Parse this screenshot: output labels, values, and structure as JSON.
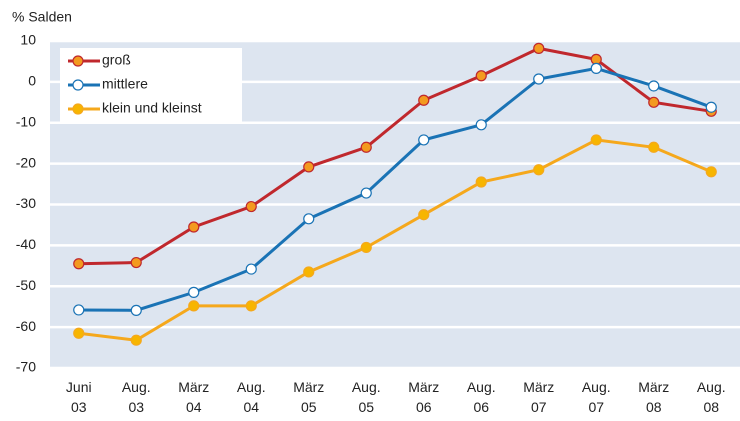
{
  "chart_data": {
    "type": "line",
    "y_label": "% Salden",
    "categories": [
      "Juni 03",
      "Aug. 03",
      "März 04",
      "Aug. 04",
      "März 05",
      "Aug. 05",
      "März 06",
      "Aug. 06",
      "März 07",
      "Aug. 07",
      "März 08",
      "Aug. 08"
    ],
    "series": [
      {
        "name": "groß",
        "color": "#c0282d",
        "marker_color": "#f39a1f",
        "values": [
          -44.5,
          -44.2,
          -35.5,
          -30.5,
          -20.8,
          -16,
          -4.5,
          1.5,
          8.2,
          5.5,
          -5,
          -7.2
        ]
      },
      {
        "name": "mittlere",
        "color": "#1a73b5",
        "marker_color": "#ffffff",
        "values": [
          -55.8,
          -55.9,
          -51.5,
          -45.8,
          -33.5,
          -27.2,
          -14.2,
          -10.5,
          0.7,
          3.3,
          -1,
          -6.2
        ]
      },
      {
        "name": "klein und kleinst",
        "color": "#f5a81c",
        "marker_color": "#f7b500",
        "values": [
          -61.5,
          -63.2,
          -54.8,
          -54.8,
          -46.5,
          -40.5,
          -32.5,
          -24.5,
          -21.5,
          -14.2,
          -16,
          -22
        ]
      }
    ],
    "ylim": [
      -70,
      10
    ],
    "yticks": [
      -70,
      -60,
      -50,
      -40,
      -30,
      -20,
      -10,
      0,
      10
    ],
    "grid": true,
    "legend": "top-left"
  }
}
